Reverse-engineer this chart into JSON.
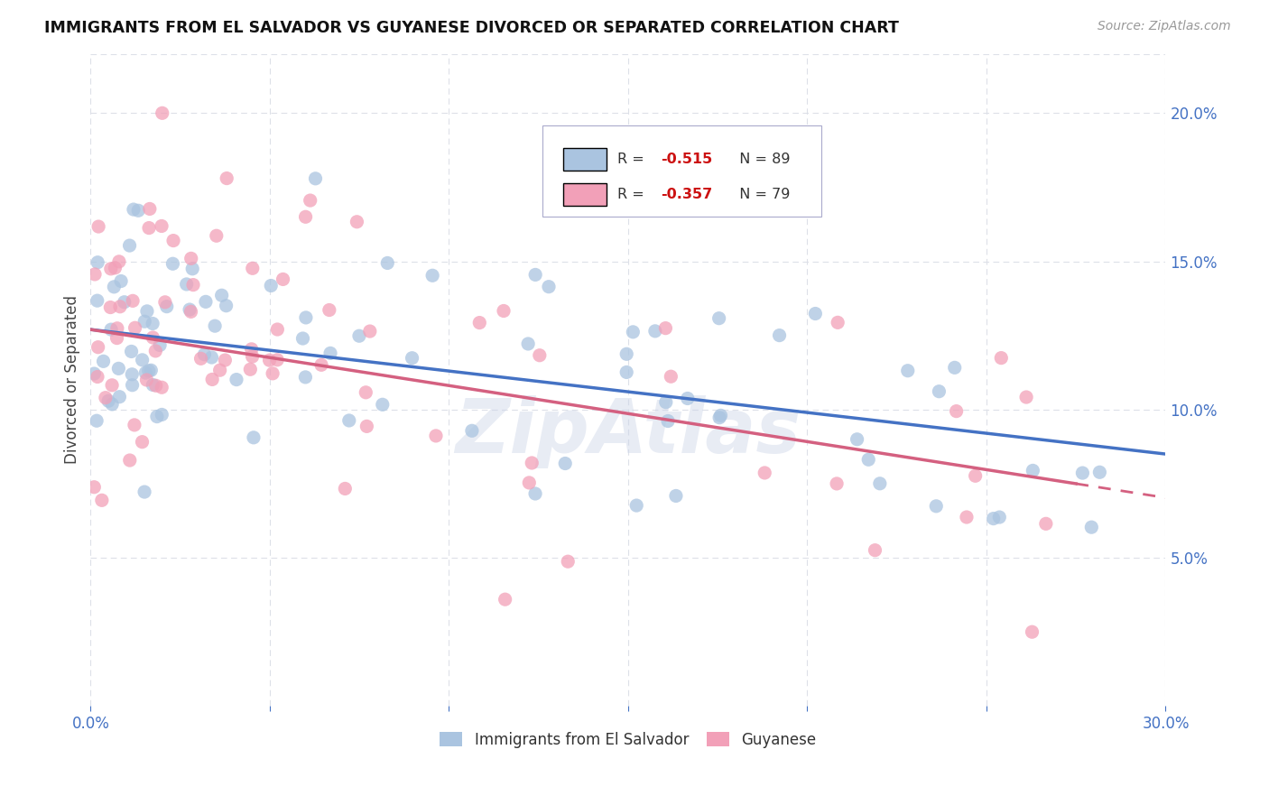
{
  "title": "IMMIGRANTS FROM EL SALVADOR VS GUYANESE DIVORCED OR SEPARATED CORRELATION CHART",
  "source": "Source: ZipAtlas.com",
  "ylabel": "Divorced or Separated",
  "xmin": 0.0,
  "xmax": 0.3,
  "ymin": 0.0,
  "ymax": 0.22,
  "y_ticks": [
    0.05,
    0.1,
    0.15,
    0.2
  ],
  "y_tick_labels": [
    "5.0%",
    "10.0%",
    "15.0%",
    "20.0%"
  ],
  "blue_color": "#aac4e0",
  "pink_color": "#f2a0b8",
  "blue_line_color": "#4472c4",
  "pink_line_color": "#d46080",
  "blue_R": -0.515,
  "blue_N": 89,
  "pink_R": -0.357,
  "pink_N": 79,
  "background_color": "#ffffff",
  "grid_color": "#dde0e8",
  "watermark_text": "ZipAtlas",
  "legend_label_blue": "Immigrants from El Salvador",
  "legend_label_pink": "Guyanese",
  "blue_trend_x0": 0.0,
  "blue_trend_y0": 0.127,
  "blue_trend_x1": 0.3,
  "blue_trend_y1": 0.085,
  "pink_trend_x0": 0.0,
  "pink_trend_y0": 0.127,
  "pink_trend_x1": 0.275,
  "pink_trend_y1": 0.075
}
